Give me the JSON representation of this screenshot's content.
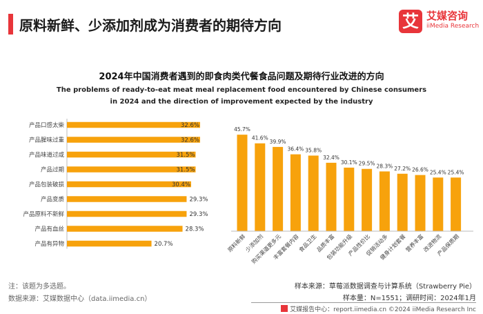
{
  "header": {
    "title": "原料新鲜、少添加剂成为消费者的期待方向",
    "logo_mark": "艾",
    "logo_cn": "艾媒咨询",
    "logo_en": "iiMedia Research"
  },
  "colors": {
    "bar": "#f7a20c",
    "accent": "#e8353a",
    "grid": "#e6e6e6"
  },
  "chart_data": [
    {
      "type": "bar",
      "orientation": "horizontal",
      "title": "2024年中国消费者遇到的即食肉类代餐食品问题及期待行业改进的方向",
      "subtitle": "The problems of ready-to-eat meat meal replacement food encountered by Chinese consumers in 2024 and the direction of improvement expected by the industry",
      "categories": [
        "产品口感太柴",
        "产品腥味过重",
        "产品味道过咸",
        "产品过期",
        "产品包装破损",
        "产品变质",
        "产品原料不新鲜",
        "产品有血丝",
        "产品有异物"
      ],
      "values": [
        32.6,
        32.6,
        31.5,
        31.5,
        30.4,
        29.3,
        29.3,
        28.3,
        20.7
      ],
      "labels": [
        "32.6%",
        "32.6%",
        "31.5%",
        "31.5%",
        "30.4%",
        "29.3%",
        "29.3%",
        "28.3%",
        "20.7%"
      ],
      "xlim": [
        0,
        35
      ]
    },
    {
      "type": "bar",
      "orientation": "vertical",
      "categories": [
        "原料新鲜",
        "少添加剂",
        "购买渠道更多元",
        "丰富套餐内容",
        "食品卫生",
        "品质丰富",
        "包装功能升级",
        "产品性价比",
        "促销活动多",
        "健身计划套餐",
        "营养丰富",
        "改进物流",
        "产品保质期"
      ],
      "values": [
        45.7,
        41.6,
        39.9,
        36.4,
        35.8,
        32.4,
        30.1,
        29.5,
        28.3,
        27.2,
        26.6,
        25.4,
        25.4
      ],
      "labels": [
        "45.7%",
        "41.6%",
        "39.9%",
        "36.4%",
        "35.8%",
        "32.4%",
        "30.1%",
        "29.5%",
        "28.3%",
        "27.2%",
        "26.6%",
        "25.4%",
        "25.4%"
      ],
      "ylim": [
        0,
        50
      ]
    }
  ],
  "footer": {
    "note": "注：该题为多选题。",
    "source": "数据来源：艾媒数据中心（data.iimedia.cn）",
    "sample_system": "样本来源：草莓派数据调查与计算系统（Strawberry Pie）",
    "sample_size": "样本量：N=1551；调研时间：2024年1月",
    "copyright": "艾媒报告中心：report.iimedia.cn    ©2024  iiMedia Research  Inc"
  }
}
